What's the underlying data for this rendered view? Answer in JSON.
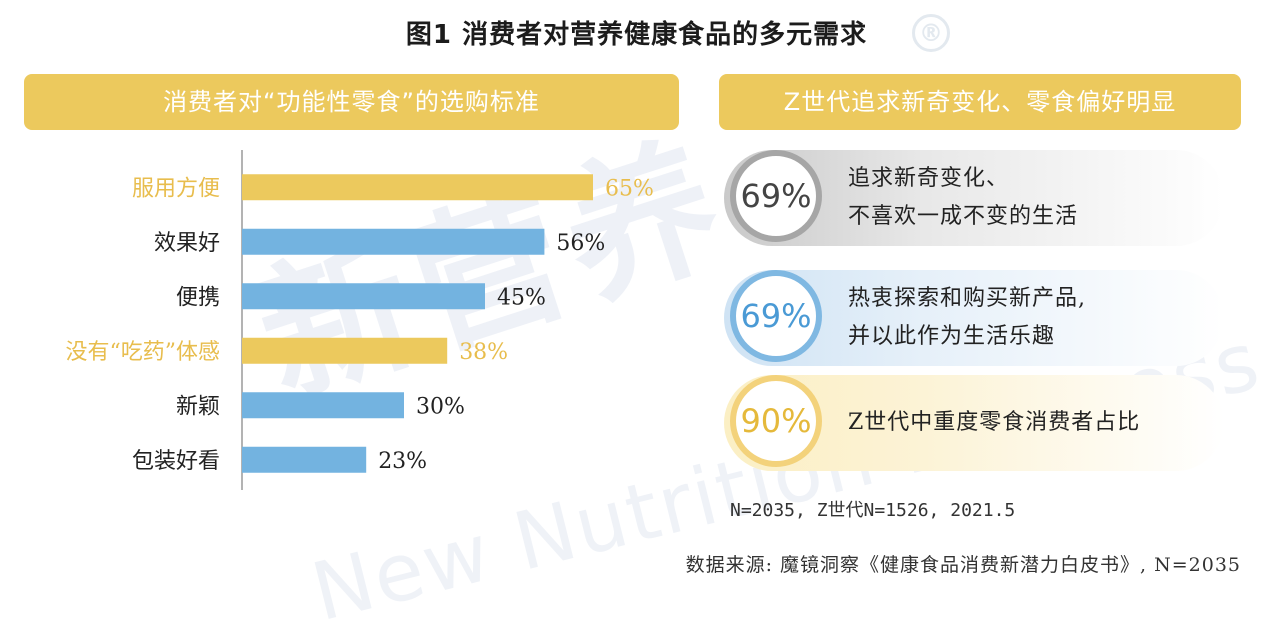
{
  "title": "图1 消费者对营养健康食品的多元需求",
  "registered_mark": "®",
  "watermark": {
    "cn": "新营养",
    "en": "New Nutrition Business"
  },
  "left_banner": "消费者对“功能性零食”的选购标准",
  "right_banner": "Z世代追求新奇变化、零食偏好明显",
  "colors": {
    "gold": "#ecc95d",
    "blue": "#73b3e0",
    "gold_text": "#e8bd4d",
    "axis": "#9a9a9a"
  },
  "chart_data": {
    "type": "bar",
    "orientation": "horizontal",
    "title": "消费者对“功能性零食”的选购标准",
    "categories": [
      "服用方便",
      "效果好",
      "便携",
      "没有“吃药”体感",
      "新颖",
      "包装好看"
    ],
    "values": [
      65,
      56,
      45,
      38,
      30,
      23
    ],
    "value_labels": [
      "65%",
      "56%",
      "45%",
      "38%",
      "30%",
      "23%"
    ],
    "highlight": [
      true,
      false,
      false,
      true,
      false,
      false
    ],
    "xlim": [
      0,
      100
    ]
  },
  "stats": [
    {
      "value": "69%",
      "lines": [
        "追求新奇变化、",
        "不喜欢一成不变的生活"
      ]
    },
    {
      "value": "69%",
      "lines": [
        "热衷探索和购买新产品,",
        "并以此作为生活乐趣"
      ]
    },
    {
      "value": "90%",
      "lines": [
        "Z世代中重度零食消费者占比"
      ]
    }
  ],
  "note": "N=2035, Z世代N=1526, 2021.5",
  "source": "数据来源: 魔镜洞察《健康食品消费新潜力白皮书》, N=2035"
}
